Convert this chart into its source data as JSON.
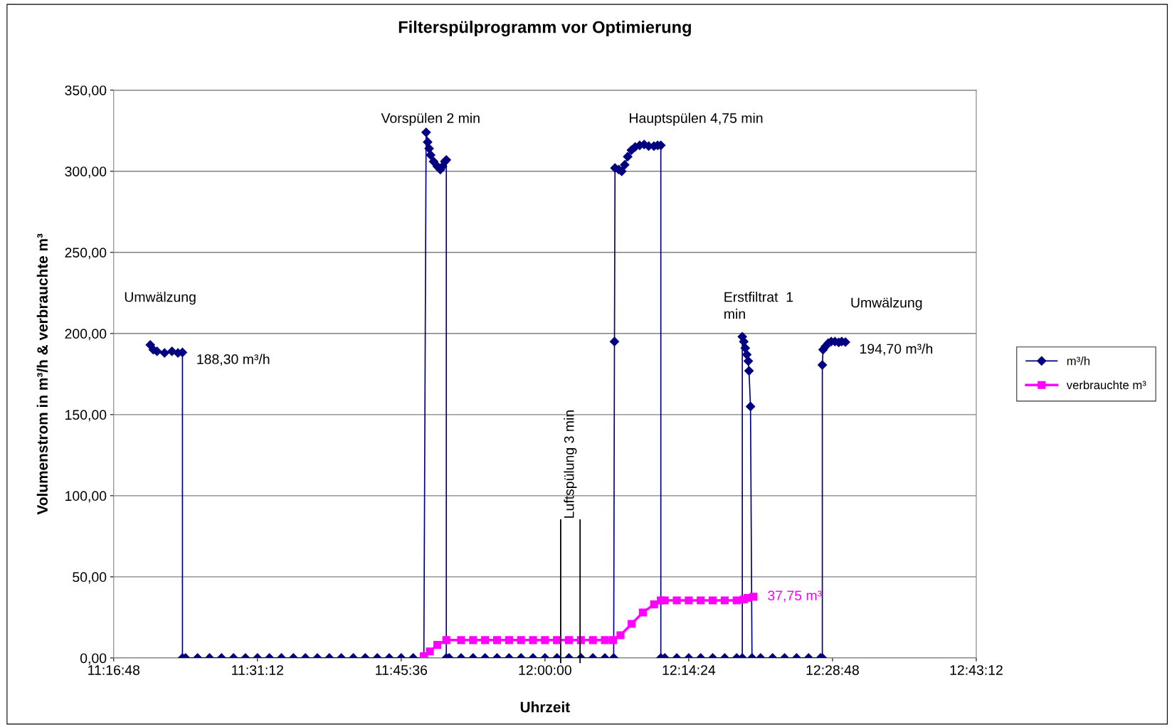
{
  "chart_data": {
    "type": "line",
    "title": "Filterspülprogramm vor Optimierung",
    "xlabel": "Uhrzeit",
    "ylabel": "Volumenstrom in m³/h & verbrauchte m³",
    "xlim": [
      11.28,
      12.72
    ],
    "xticks": [
      {
        "value": 11.28,
        "label": "11:16:48"
      },
      {
        "value": 11.52,
        "label": "11:31:12"
      },
      {
        "value": 11.76,
        "label": "11:45:36"
      },
      {
        "value": 12.0,
        "label": "12:00:00"
      },
      {
        "value": 12.24,
        "label": "12:14:24"
      },
      {
        "value": 12.48,
        "label": "12:28:48"
      },
      {
        "value": 12.72,
        "label": "12:43:12"
      }
    ],
    "ylim": [
      0,
      350
    ],
    "yticks": [
      {
        "value": 0,
        "label": "0,00"
      },
      {
        "value": 50,
        "label": "50,00"
      },
      {
        "value": 100,
        "label": "100,00"
      },
      {
        "value": 150,
        "label": "150,00"
      },
      {
        "value": 200,
        "label": "200,00"
      },
      {
        "value": 250,
        "label": "250,00"
      },
      {
        "value": 300,
        "label": "300,00"
      },
      {
        "value": 350,
        "label": "350,00"
      }
    ],
    "grid": "y",
    "legend": "right",
    "line_style": "solid",
    "series": [
      {
        "name": "m³/h",
        "color": "#000080",
        "marker": "diamond",
        "x": [
          11.3411,
          11.3461,
          11.3524,
          11.3649,
          11.3773,
          11.3873,
          11.3948,
          11.3948,
          11.4,
          11.42,
          11.44,
          11.46,
          11.48,
          11.5,
          11.52,
          11.54,
          11.56,
          11.58,
          11.6,
          11.62,
          11.64,
          11.66,
          11.68,
          11.7,
          11.72,
          11.74,
          11.76,
          11.78,
          11.7978,
          11.8016,
          11.8041,
          11.8066,
          11.8091,
          11.8141,
          11.8203,
          11.8253,
          11.829,
          11.8328,
          11.8353,
          11.8353,
          11.84,
          11.86,
          11.88,
          11.9,
          11.92,
          11.94,
          11.96,
          11.98,
          12.0,
          12.02,
          12.04,
          12.06,
          12.08,
          12.1,
          12.1147,
          12.116,
          12.1169,
          12.1232,
          12.1281,
          12.1331,
          12.1381,
          12.1443,
          12.1506,
          12.1581,
          12.1656,
          12.1731,
          12.1819,
          12.1881,
          12.1934,
          12.1934,
          12.2,
          12.22,
          12.24,
          12.26,
          12.28,
          12.3,
          12.32,
          12.3294,
          12.3294,
          12.3319,
          12.3344,
          12.3369,
          12.3394,
          12.3406,
          12.3431,
          12.3456,
          12.36,
          12.38,
          12.4,
          12.42,
          12.44,
          12.46,
          12.463,
          12.463,
          12.4642,
          12.4681,
          12.4729,
          12.4779,
          12.4841,
          12.4904,
          12.4954,
          12.5016
        ],
        "values": [
          193,
          190,
          189,
          188,
          189,
          188,
          188.3,
          0,
          0,
          0,
          0,
          0,
          0,
          0,
          0,
          0,
          0,
          0,
          0,
          0,
          0,
          0,
          0,
          0,
          0,
          0,
          0,
          0,
          0,
          324,
          318,
          314,
          310,
          306,
          303,
          301,
          303,
          306,
          307,
          0,
          0,
          0,
          0,
          0,
          0,
          0,
          0,
          0,
          0,
          0,
          0,
          0,
          0,
          0,
          0,
          195,
          302,
          301,
          300,
          304,
          309,
          313,
          315,
          316,
          316.5,
          315.5,
          315.5,
          316,
          316,
          0,
          0,
          0,
          0,
          0,
          0,
          0,
          0,
          0,
          198,
          195,
          191,
          187,
          183,
          177,
          155,
          0,
          0,
          0,
          0,
          0,
          0,
          0,
          0,
          180.6,
          190,
          192,
          194,
          195,
          195,
          194.5,
          195,
          194.7
        ]
      },
      {
        "name": "verbrauchte m³",
        "color": "#ff00ff",
        "marker": "square",
        "x": [
          11.7978,
          11.8078,
          11.8203,
          11.8353,
          11.86,
          11.88,
          11.9,
          11.92,
          11.94,
          11.96,
          11.98,
          12.0,
          12.02,
          12.04,
          12.06,
          12.08,
          12.1,
          12.1136,
          12.126,
          12.1447,
          12.1634,
          12.1821,
          12.1934,
          12.2,
          12.22,
          12.24,
          12.26,
          12.28,
          12.3,
          12.32,
          12.3319,
          12.3381,
          12.3481
        ],
        "values": [
          1,
          4,
          8,
          11,
          11,
          11,
          11,
          11,
          11,
          11,
          11,
          11,
          11,
          11,
          11,
          11,
          11,
          11,
          14,
          21,
          28,
          33,
          35.5,
          35.5,
          35.5,
          35.5,
          35.5,
          35.5,
          35.5,
          35.5,
          36,
          37,
          37.75
        ]
      }
    ],
    "ref_lines": [
      {
        "axis": "x",
        "value": 12.0262,
        "label": "Luftspülung 3 min",
        "color": "#000000",
        "line_style": "solid"
      },
      {
        "axis": "x",
        "value": 12.0586,
        "color": "#000000",
        "line_style": "solid"
      }
    ],
    "annotations": [
      "Umwälzung",
      "Vorspülen 2 min",
      "Hauptspülen 4,75 min",
      "Erstfiltrat  1\nmin",
      "Umwälzung",
      {
        "text": "188,30 m³/h",
        "x": 11.3948,
        "y": 188.3
      },
      {
        "text": "194,70 m³/h",
        "x": 12.5016,
        "y": 194.7
      },
      {
        "text": "37,75 m³",
        "x": 12.3481,
        "y": 37.75
      }
    ]
  }
}
